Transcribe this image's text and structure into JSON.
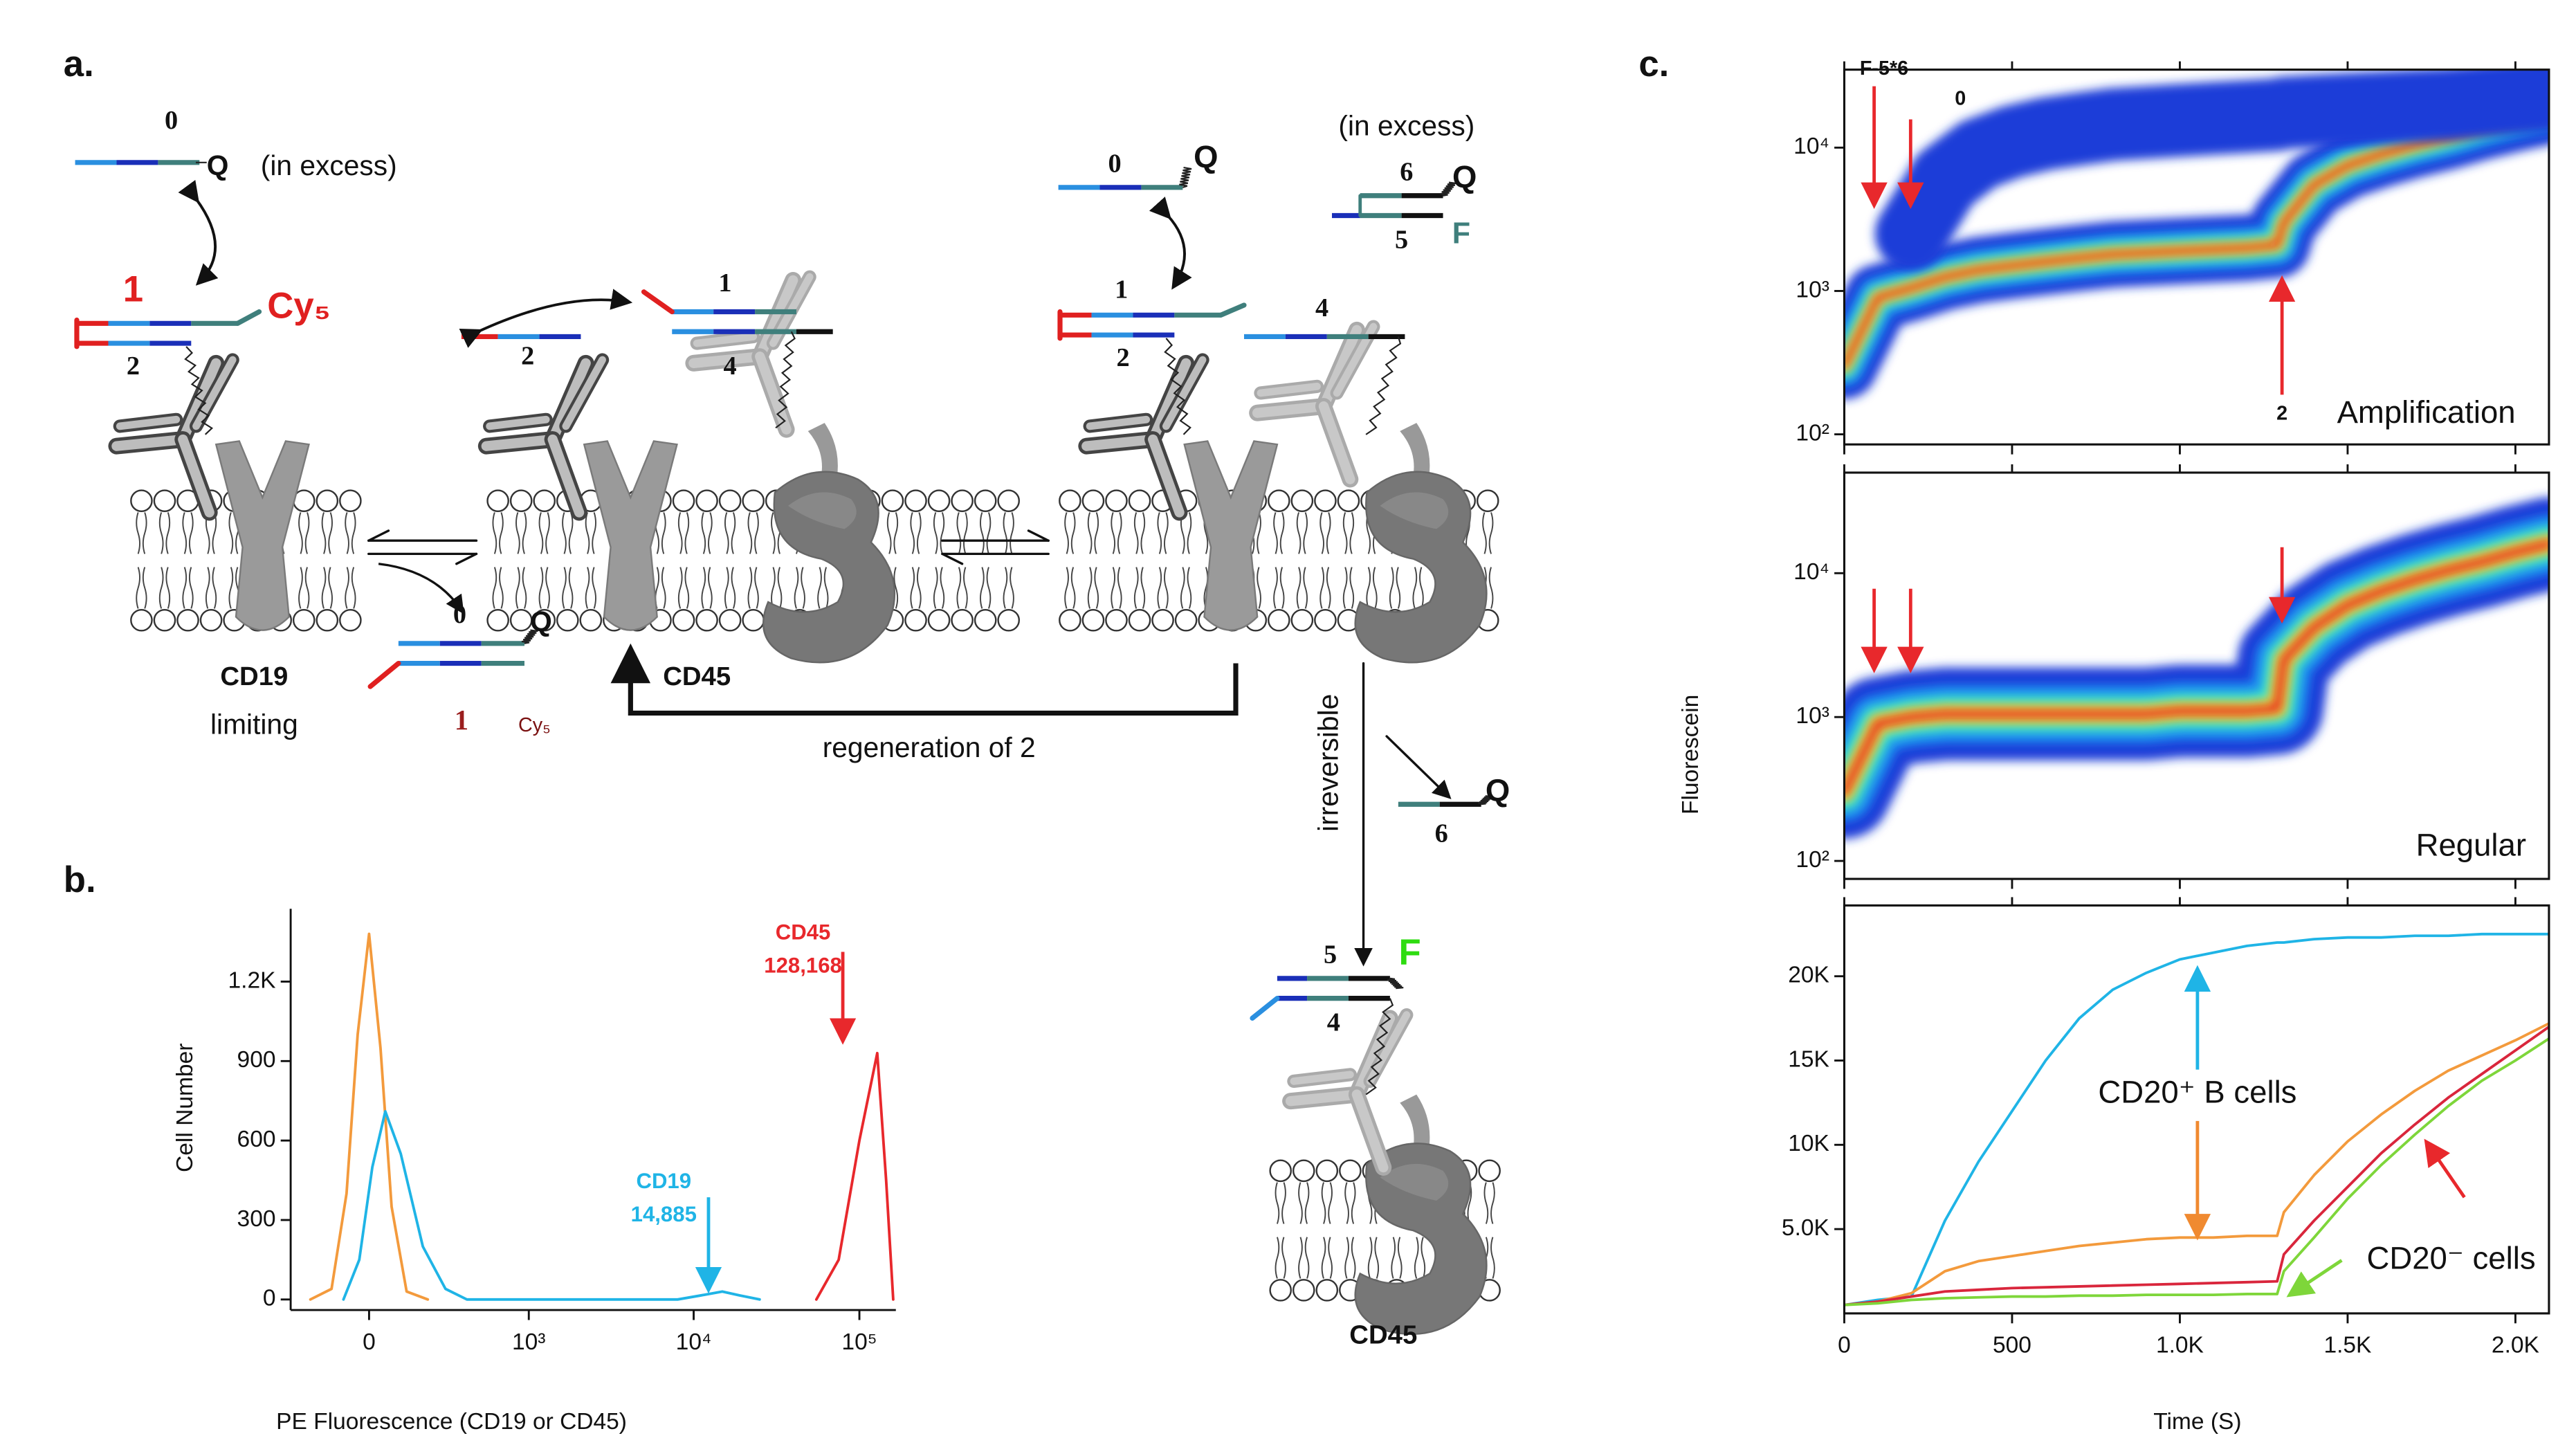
{
  "panel_labels": [
    "a.",
    "b.",
    "c."
  ],
  "diagram": {
    "labels": [
      "0",
      "Q",
      "(in excess)",
      "1",
      "Cy₅",
      "2",
      "CD19",
      "limiting",
      "0",
      "Q",
      "1",
      "Cy₅",
      "2",
      "1",
      "4",
      "CD45",
      "regeneration of 2",
      "0",
      "Q",
      "1",
      "2",
      "4",
      "(in excess)",
      "6",
      "Q",
      "5",
      "F",
      "irreversible",
      "6",
      "Q",
      "5",
      "F",
      "4",
      "CD45"
    ]
  },
  "chart_data": [
    {
      "type": "line",
      "xlabel": "PE Fluorescence (CD19 or CD45)",
      "ylabel": "Cell Number",
      "xscale": "biexponential",
      "xlim": [
        -290,
        166000
      ],
      "xticks": [
        0,
        {
          "value": 1000,
          "label": "10³"
        },
        {
          "value": 10000,
          "label": "10⁴"
        },
        {
          "value": 100000,
          "label": "10⁵"
        }
      ],
      "ylim": [
        -40,
        1475
      ],
      "yticks": [
        0,
        300,
        600,
        900,
        {
          "value": 1200,
          "label": "1.2K"
        }
      ],
      "series": [
        {
          "color": "#f39a3c",
          "x": [
            -200,
            -120,
            -70,
            -35,
            0,
            35,
            70,
            120,
            200
          ],
          "values": [
            0,
            40,
            400,
            1000,
            1380,
            950,
            350,
            30,
            0
          ]
        },
        {
          "color": "#1fb4e6",
          "x": [
            -80,
            -30,
            10,
            50,
            100,
            180,
            280,
            400,
            8000,
            11000,
            14885,
            19000,
            25000
          ],
          "values": [
            0,
            150,
            500,
            710,
            550,
            200,
            40,
            0,
            0,
            15,
            30,
            15,
            0
          ]
        },
        {
          "color": "#e8282c",
          "x": [
            55000,
            75000,
            100000,
            128168,
            145000,
            160000
          ],
          "values": [
            0,
            150,
            600,
            930,
            450,
            0
          ]
        }
      ],
      "annotations": [
        "CD45",
        "128,168",
        "CD19",
        "14,885"
      ]
    },
    {
      "type": "density",
      "ylog": true,
      "xlim": [
        0,
        2100
      ],
      "xticks": [
        0,
        500,
        1000,
        1500,
        2000
      ],
      "ylim": [
        85,
        35000
      ],
      "yticks": [
        {
          "value": 100,
          "label": "10²"
        },
        {
          "value": 1000,
          "label": "10³"
        },
        {
          "value": 10000,
          "label": "10⁴"
        }
      ],
      "x": [
        0,
        100,
        200,
        300,
        400,
        500,
        600,
        700,
        800,
        900,
        1000,
        1100,
        1200,
        1290,
        1310,
        1400,
        1500,
        1600,
        1700,
        1800,
        1900,
        2000,
        2100
      ],
      "series": [
        {
          "color": "#e8281e",
          "values": [
            300,
            900,
            1050,
            1250,
            1400,
            1500,
            1600,
            1700,
            1800,
            1850,
            1900,
            1950,
            2000,
            2100,
            3000,
            5500,
            7500,
            9000,
            10500,
            12000,
            14000,
            16000,
            18000
          ]
        },
        {
          "color": "#1e3cd8",
          "values": [
            null,
            null,
            2500,
            6000,
            9000,
            11000,
            12500,
            13500,
            14500,
            15000,
            15500,
            16000,
            16500,
            17000,
            17500,
            18000,
            18500,
            19000,
            19500,
            20000,
            21000,
            22000,
            23000
          ]
        }
      ],
      "annotations": [
        "F-5*6",
        "0",
        "2",
        "Amplification"
      ]
    },
    {
      "type": "density",
      "ylog": true,
      "ylabel": "Fluorescein",
      "xlim": [
        0,
        2100
      ],
      "xticks": [
        0,
        500,
        1000,
        1500,
        2000
      ],
      "ylim": [
        75,
        50000
      ],
      "yticks": [
        {
          "value": 100,
          "label": "10²"
        },
        {
          "value": 1000,
          "label": "10³"
        },
        {
          "value": 10000,
          "label": "10⁴"
        }
      ],
      "x": [
        0,
        100,
        200,
        300,
        400,
        500,
        600,
        700,
        800,
        900,
        1000,
        1100,
        1200,
        1290,
        1310,
        1400,
        1500,
        1600,
        1700,
        1800,
        1900,
        2000,
        2100
      ],
      "series": [
        {
          "color": "#e8281e",
          "values": [
            300,
            900,
            1000,
            1050,
            1050,
            1050,
            1050,
            1050,
            1050,
            1050,
            1100,
            1100,
            1100,
            1150,
            2500,
            4200,
            6000,
            7500,
            9000,
            10500,
            12000,
            14000,
            16000
          ]
        }
      ],
      "annotations": [
        "Regular"
      ]
    },
    {
      "type": "line",
      "xlabel": "Time (S)",
      "xlim": [
        0,
        2100
      ],
      "xticks": [
        0,
        500,
        {
          "value": 1000,
          "label": "1.0K"
        },
        {
          "value": 1500,
          "label": "1.5K"
        },
        {
          "value": 2000,
          "label": "2.0K"
        }
      ],
      "ylim": [
        0,
        24200
      ],
      "yticks": [
        {
          "value": 5000,
          "label": "5.0K"
        },
        {
          "value": 10000,
          "label": "10K"
        },
        {
          "value": 15000,
          "label": "15K"
        },
        {
          "value": 20000,
          "label": "20K"
        }
      ],
      "x": [
        0,
        100,
        200,
        300,
        400,
        500,
        600,
        700,
        800,
        900,
        1000,
        1100,
        1200,
        1290,
        1310,
        1400,
        1500,
        1600,
        1700,
        1800,
        1900,
        2000,
        2100
      ],
      "series": [
        {
          "color": "#1fb4e6",
          "values": [
            500,
            800,
            1000,
            5500,
            9000,
            12000,
            15000,
            17500,
            19200,
            20200,
            21000,
            21400,
            21800,
            22000,
            22000,
            22200,
            22300,
            22300,
            22400,
            22400,
            22500,
            22500,
            22500
          ]
        },
        {
          "color": "#f39a3c",
          "values": [
            500,
            700,
            1200,
            2500,
            3100,
            3400,
            3700,
            4000,
            4200,
            4400,
            4500,
            4500,
            4600,
            4600,
            6000,
            8200,
            10200,
            11800,
            13200,
            14400,
            15300,
            16200,
            17200
          ]
        },
        {
          "color": "#d9263c",
          "values": [
            500,
            700,
            1000,
            1300,
            1400,
            1500,
            1550,
            1600,
            1650,
            1700,
            1750,
            1800,
            1850,
            1900,
            3500,
            5500,
            7500,
            9500,
            11200,
            12800,
            14200,
            15600,
            17000
          ]
        },
        {
          "color": "#7ed63a",
          "values": [
            500,
            600,
            800,
            900,
            950,
            1000,
            1000,
            1050,
            1050,
            1100,
            1100,
            1100,
            1150,
            1150,
            2500,
            4500,
            6800,
            8800,
            10600,
            12300,
            13800,
            15000,
            16300
          ]
        }
      ],
      "annotations": [
        "CD20⁺ B cells",
        "CD20⁻ cells"
      ]
    }
  ]
}
